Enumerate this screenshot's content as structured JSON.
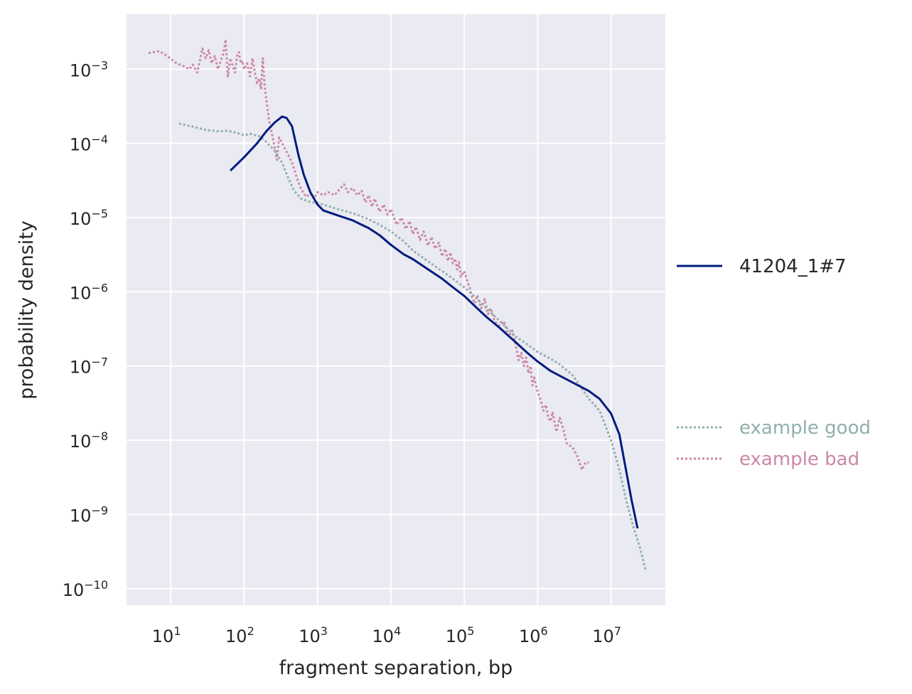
{
  "chart_data": {
    "type": "line",
    "xlabel": "fragment separation, bp",
    "ylabel": "probability density",
    "xscale": "log",
    "yscale": "log",
    "xlim": [
      2.5,
      55000000
    ],
    "ylim": [
      6e-11,
      0.0055
    ],
    "grid": true,
    "legend_placement": "right",
    "x_tick_labels": [
      {
        "base": "10",
        "exp": "1",
        "value": 10
      },
      {
        "base": "10",
        "exp": "2",
        "value": 100
      },
      {
        "base": "10",
        "exp": "3",
        "value": 1000
      },
      {
        "base": "10",
        "exp": "4",
        "value": 10000
      },
      {
        "base": "10",
        "exp": "5",
        "value": 100000
      },
      {
        "base": "10",
        "exp": "6",
        "value": 1000000
      },
      {
        "base": "10",
        "exp": "7",
        "value": 10000000
      }
    ],
    "y_tick_labels": [
      {
        "base": "10",
        "exp": "−3",
        "value": 0.001
      },
      {
        "base": "10",
        "exp": "−4",
        "value": 0.0001
      },
      {
        "base": "10",
        "exp": "−5",
        "value": 1e-05
      },
      {
        "base": "10",
        "exp": "−6",
        "value": 1e-06
      },
      {
        "base": "10",
        "exp": "−7",
        "value": 1e-07
      },
      {
        "base": "10",
        "exp": "−8",
        "value": 1e-08
      },
      {
        "base": "10",
        "exp": "−9",
        "value": 1e-09
      },
      {
        "base": "10",
        "exp": "−10",
        "value": 1e-10
      }
    ],
    "series": [
      {
        "name": "41204_1#7",
        "color": "#001c7f",
        "style": "solid",
        "points": [
          [
            65,
            4.3e-05
          ],
          [
            100,
            6.5e-05
          ],
          [
            150,
            0.0001
          ],
          [
            200,
            0.000145
          ],
          [
            260,
            0.00019
          ],
          [
            330,
            0.00023
          ],
          [
            380,
            0.00022
          ],
          [
            450,
            0.00017
          ],
          [
            550,
            7e-05
          ],
          [
            650,
            3.8e-05
          ],
          [
            800,
            2.2e-05
          ],
          [
            1000,
            1.5e-05
          ],
          [
            1200,
            1.25e-05
          ],
          [
            2000,
            1.05e-05
          ],
          [
            3000,
            9.2e-06
          ],
          [
            5000,
            7.2e-06
          ],
          [
            7000,
            5.8e-06
          ],
          [
            10000,
            4.3e-06
          ],
          [
            15000,
            3.2e-06
          ],
          [
            20000,
            2.75e-06
          ],
          [
            30000,
            2.1e-06
          ],
          [
            50000,
            1.5e-06
          ],
          [
            70000,
            1.15e-06
          ],
          [
            100000,
            8.8e-07
          ],
          [
            150000,
            6e-07
          ],
          [
            200000,
            4.6e-07
          ],
          [
            300000,
            3.3e-07
          ],
          [
            500000,
            2.1e-07
          ],
          [
            700000,
            1.55e-07
          ],
          [
            1000000,
            1.15e-07
          ],
          [
            1500000,
            8.6e-08
          ],
          [
            2000000,
            7.4e-08
          ],
          [
            3000000,
            6e-08
          ],
          [
            5000000,
            4.6e-08
          ],
          [
            7000000,
            3.6e-08
          ],
          [
            10000000,
            2.3e-08
          ],
          [
            13000000,
            1.2e-08
          ],
          [
            16000000,
            4e-09
          ],
          [
            19000000,
            1.6e-09
          ],
          [
            23000000,
            6.5e-10
          ]
        ]
      },
      {
        "name": "example good",
        "color": "#8fb0ac",
        "style": "dotted",
        "points": [
          [
            13,
            0.000185
          ],
          [
            20,
            0.000168
          ],
          [
            30,
            0.000152
          ],
          [
            45,
            0.000145
          ],
          [
            60,
            0.000148
          ],
          [
            80,
            0.000138
          ],
          [
            100,
            0.000128
          ],
          [
            120,
            0.000135
          ],
          [
            160,
            0.000125
          ],
          [
            200,
            0.000105
          ],
          [
            260,
            8e-05
          ],
          [
            330,
            5.5e-05
          ],
          [
            400,
            3.4e-05
          ],
          [
            480,
            2.3e-05
          ],
          [
            600,
            1.8e-05
          ],
          [
            800,
            1.62e-05
          ],
          [
            1000,
            1.58e-05
          ],
          [
            1500,
            1.4e-05
          ],
          [
            2000,
            1.28e-05
          ],
          [
            3000,
            1.15e-05
          ],
          [
            5000,
            9.5e-06
          ],
          [
            7000,
            8e-06
          ],
          [
            10000,
            6.5e-06
          ],
          [
            15000,
            4.8e-06
          ],
          [
            20000,
            3.6e-06
          ],
          [
            30000,
            2.7e-06
          ],
          [
            50000,
            1.9e-06
          ],
          [
            70000,
            1.5e-06
          ],
          [
            100000,
            1.15e-06
          ],
          [
            150000,
            8e-07
          ],
          [
            200000,
            6e-07
          ],
          [
            300000,
            4.1e-07
          ],
          [
            500000,
            2.5e-07
          ],
          [
            700000,
            2e-07
          ],
          [
            1000000,
            1.55e-07
          ],
          [
            1500000,
            1.25e-07
          ],
          [
            2000000,
            1.05e-07
          ],
          [
            3000000,
            7.5e-08
          ],
          [
            4000000,
            5e-08
          ],
          [
            5000000,
            3.6e-08
          ],
          [
            7000000,
            2.5e-08
          ],
          [
            10000000,
            1e-08
          ],
          [
            13000000,
            4e-09
          ],
          [
            16000000,
            1.6e-09
          ],
          [
            20000000,
            7e-10
          ],
          [
            25000000,
            3.5e-10
          ],
          [
            30000000,
            1.7e-10
          ]
        ]
      },
      {
        "name": "example bad",
        "color": "#cc88a6",
        "style": "dotted",
        "points": [
          [
            5,
            0.00165
          ],
          [
            7,
            0.00175
          ],
          [
            9,
            0.0015
          ],
          [
            12,
            0.0012
          ],
          [
            15,
            0.0011
          ],
          [
            18,
            0.001
          ],
          [
            20,
            0.00115
          ],
          [
            23,
            0.0009
          ],
          [
            25,
            0.0013
          ],
          [
            27,
            0.0019
          ],
          [
            30,
            0.0014
          ],
          [
            33,
            0.0018
          ],
          [
            36,
            0.0012
          ],
          [
            40,
            0.0015
          ],
          [
            44,
            0.001
          ],
          [
            48,
            0.0013
          ],
          [
            52,
            0.0016
          ],
          [
            56,
            0.0025
          ],
          [
            60,
            0.0008
          ],
          [
            65,
            0.0014
          ],
          [
            70,
            0.0011
          ],
          [
            75,
            0.0009
          ],
          [
            80,
            0.0015
          ],
          [
            85,
            0.0017
          ],
          [
            90,
            0.0012
          ],
          [
            95,
            0.0013
          ],
          [
            100,
            0.001
          ],
          [
            110,
            0.0012
          ],
          [
            120,
            0.0008
          ],
          [
            130,
            0.0014
          ],
          [
            140,
            0.0009
          ],
          [
            150,
            0.00065
          ],
          [
            160,
            0.00075
          ],
          [
            170,
            0.00055
          ],
          [
            180,
            0.0014
          ],
          [
            190,
            0.0006
          ],
          [
            200,
            0.0004
          ],
          [
            220,
            0.0002
          ],
          [
            250,
            0.00011
          ],
          [
            280,
            6e-05
          ],
          [
            300,
            0.00012
          ],
          [
            340,
            9.5e-05
          ],
          [
            400,
            7e-05
          ],
          [
            450,
            5.5e-05
          ],
          [
            500,
            4e-05
          ],
          [
            550,
            3e-05
          ],
          [
            600,
            2.4e-05
          ],
          [
            700,
            1.9e-05
          ],
          [
            800,
            2.1e-05
          ],
          [
            900,
            1.8e-05
          ],
          [
            1000,
            2.2e-05
          ],
          [
            1200,
            2e-05
          ],
          [
            1400,
            2.2e-05
          ],
          [
            1700,
            2e-05
          ],
          [
            2000,
            2.4e-05
          ],
          [
            2300,
            2.8e-05
          ],
          [
            2600,
            2.2e-05
          ],
          [
            3000,
            2.5e-05
          ],
          [
            3500,
            2e-05
          ],
          [
            4000,
            2.3e-05
          ],
          [
            4500,
            1.6e-05
          ],
          [
            5000,
            2e-05
          ],
          [
            5500,
            1.4e-05
          ],
          [
            6000,
            1.8e-05
          ],
          [
            7000,
            1.2e-05
          ],
          [
            8000,
            1.5e-05
          ],
          [
            9000,
            1.1e-05
          ],
          [
            10000,
            1.3e-05
          ],
          [
            12000,
            8e-06
          ],
          [
            14000,
            1e-05
          ],
          [
            16000,
            7e-06
          ],
          [
            18000,
            9e-06
          ],
          [
            20000,
            6e-06
          ],
          [
            22000,
            7.5e-06
          ],
          [
            25000,
            5e-06
          ],
          [
            28000,
            6.5e-06
          ],
          [
            32000,
            4.2e-06
          ],
          [
            36000,
            5.5e-06
          ],
          [
            40000,
            3.8e-06
          ],
          [
            45000,
            4.6e-06
          ],
          [
            50000,
            3e-06
          ],
          [
            55000,
            3.8e-06
          ],
          [
            60000,
            2.6e-06
          ],
          [
            65000,
            3.4e-06
          ],
          [
            70000,
            2.4e-06
          ],
          [
            75000,
            2.8e-06
          ],
          [
            80000,
            2e-06
          ],
          [
            85000,
            2.5e-06
          ],
          [
            90000,
            1.6e-06
          ],
          [
            100000,
            1.9e-06
          ],
          [
            110000,
            1.4e-06
          ],
          [
            120000,
            1.1e-06
          ],
          [
            130000,
            8e-07
          ],
          [
            140000,
            7e-07
          ],
          [
            150000,
            9e-07
          ],
          [
            170000,
            6e-07
          ],
          [
            190000,
            8e-07
          ],
          [
            210000,
            5e-07
          ],
          [
            230000,
            6e-07
          ],
          [
            260000,
            4e-07
          ],
          [
            300000,
            3.5e-07
          ],
          [
            350000,
            4e-07
          ],
          [
            400000,
            2.5e-07
          ],
          [
            450000,
            3e-07
          ],
          [
            500000,
            2e-07
          ],
          [
            550000,
            1.2e-07
          ],
          [
            600000,
            1.5e-07
          ],
          [
            650000,
            1e-07
          ],
          [
            700000,
            1.3e-07
          ],
          [
            750000,
            8e-08
          ],
          [
            800000,
            1e-07
          ],
          [
            850000,
            5.5e-08
          ],
          [
            900000,
            7e-08
          ],
          [
            1000000,
            4.5e-08
          ],
          [
            1100000,
            3.5e-08
          ],
          [
            1200000,
            2.5e-08
          ],
          [
            1300000,
            3e-08
          ],
          [
            1400000,
            2e-08
          ],
          [
            1500000,
            1.8e-08
          ],
          [
            1600000,
            2.4e-08
          ],
          [
            1800000,
            1.3e-08
          ],
          [
            2000000,
            2e-08
          ],
          [
            2200000,
            1.5e-08
          ],
          [
            2500000,
            9e-09
          ],
          [
            3000000,
            8e-09
          ],
          [
            3500000,
            6e-09
          ],
          [
            4000000,
            4e-09
          ],
          [
            4500000,
            5e-09
          ],
          [
            5000000,
            5e-09
          ]
        ]
      }
    ]
  }
}
